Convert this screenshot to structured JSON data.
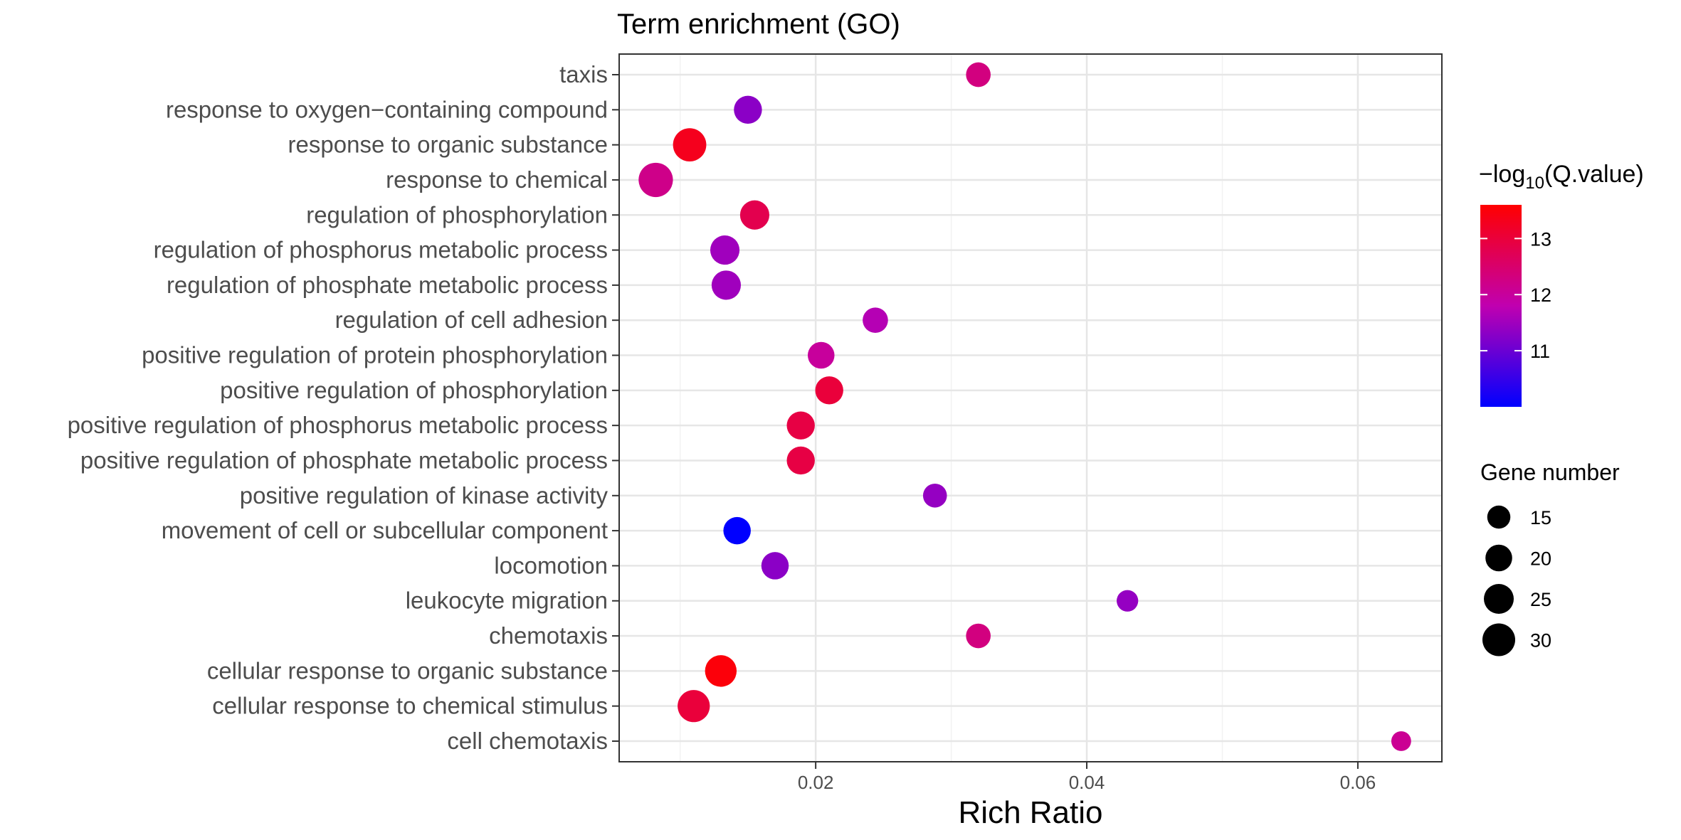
{
  "chart_data": {
    "type": "scatter",
    "title": "Term enrichment (GO)",
    "xlabel": "Rich Ratio",
    "ylabel": "",
    "xlim": [
      0.0055,
      0.0662
    ],
    "x_ticks": [
      0.02,
      0.04,
      0.06
    ],
    "x_tick_labels": [
      "0.02",
      "0.04",
      "0.06"
    ],
    "grid": true,
    "legend_position": "right",
    "terms": [
      {
        "label": "taxis",
        "rich_ratio": 0.032,
        "q": 12.3,
        "genes": 17
      },
      {
        "label": "response to oxygen−containing compound",
        "rich_ratio": 0.015,
        "q": 11.3,
        "genes": 22
      },
      {
        "label": "response to organic substance",
        "rich_ratio": 0.0107,
        "q": 13.3,
        "genes": 31
      },
      {
        "label": "response to chemical",
        "rich_ratio": 0.0082,
        "q": 12.2,
        "genes": 33
      },
      {
        "label": "regulation of phosphorylation",
        "rich_ratio": 0.0155,
        "q": 12.8,
        "genes": 24
      },
      {
        "label": "regulation of phosphorus metabolic process",
        "rich_ratio": 0.0133,
        "q": 11.5,
        "genes": 24
      },
      {
        "label": "regulation of phosphate metabolic process",
        "rich_ratio": 0.0134,
        "q": 11.5,
        "genes": 24
      },
      {
        "label": "regulation of cell adhesion",
        "rich_ratio": 0.0244,
        "q": 11.7,
        "genes": 18
      },
      {
        "label": "positive regulation of protein phosphorylation",
        "rich_ratio": 0.0204,
        "q": 12.0,
        "genes": 20
      },
      {
        "label": "positive regulation of phosphorylation",
        "rich_ratio": 0.021,
        "q": 13.0,
        "genes": 22
      },
      {
        "label": "positive regulation of phosphorus metabolic process",
        "rich_ratio": 0.0189,
        "q": 12.9,
        "genes": 22
      },
      {
        "label": "positive regulation of phosphate metabolic process",
        "rich_ratio": 0.0189,
        "q": 12.9,
        "genes": 22
      },
      {
        "label": "positive regulation of kinase activity",
        "rich_ratio": 0.0288,
        "q": 11.4,
        "genes": 16
      },
      {
        "label": "movement of cell or subcellular component",
        "rich_ratio": 0.0142,
        "q": 10.0,
        "genes": 21
      },
      {
        "label": "locomotion",
        "rich_ratio": 0.017,
        "q": 11.3,
        "genes": 21
      },
      {
        "label": "leukocyte migration",
        "rich_ratio": 0.043,
        "q": 11.4,
        "genes": 13
      },
      {
        "label": "chemotaxis",
        "rich_ratio": 0.032,
        "q": 12.3,
        "genes": 17
      },
      {
        "label": "cellular response to organic substance",
        "rich_ratio": 0.013,
        "q": 13.5,
        "genes": 28
      },
      {
        "label": "cellular response to chemical stimulus",
        "rich_ratio": 0.011,
        "q": 13.0,
        "genes": 29
      },
      {
        "label": "cell chemotaxis",
        "rich_ratio": 0.0632,
        "q": 12.1,
        "genes": 11
      }
    ],
    "color_legend": {
      "title_prefix": "−log",
      "title_sub": "10",
      "title_suffix": "(Q.value)",
      "min": 10.0,
      "max": 13.6,
      "ticks": [
        11,
        12,
        13
      ],
      "tick_labels": [
        "11",
        "12",
        "13"
      ],
      "colors": [
        "#0000ff",
        "#c000b0",
        "#ff0000"
      ]
    },
    "size_legend": {
      "title": "Gene number",
      "values": [
        15,
        20,
        25,
        30
      ],
      "labels": [
        "15",
        "20",
        "25",
        "30"
      ],
      "color": "#000000"
    }
  }
}
